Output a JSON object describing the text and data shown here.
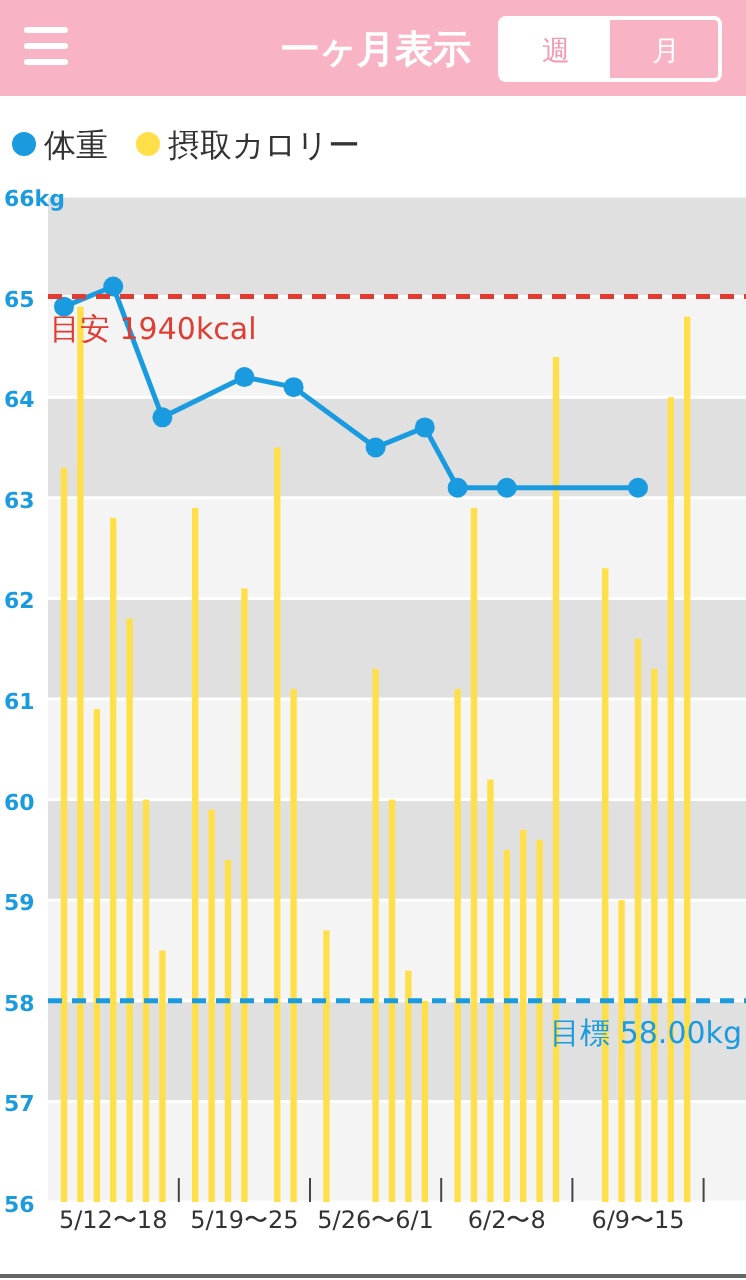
{
  "chart_data": {
    "type": "bar",
    "title": "一ヶ月表示",
    "annotations": [
      "週",
      "月"
    ],
    "categories": [
      null,
      null,
      null,
      "5/12〜18",
      null,
      null,
      null,
      null,
      null,
      null,
      null,
      "5/19〜25",
      null,
      null,
      null,
      null,
      null,
      null,
      null,
      "5/26〜6/1",
      null,
      null,
      null,
      null,
      null,
      null,
      null,
      "6/2〜8",
      null,
      null,
      null,
      null,
      null,
      null,
      null,
      "6/9〜15",
      null,
      null,
      null,
      null
    ],
    "series": [
      {
        "name": "体重",
        "type": "line",
        "color": "#1a9be0",
        "marker": "circle",
        "values": [
          64.9,
          null,
          null,
          65.1,
          null,
          null,
          63.8,
          null,
          null,
          null,
          null,
          64.2,
          null,
          null,
          64.1,
          null,
          null,
          null,
          null,
          63.5,
          null,
          null,
          63.7,
          null,
          63.1,
          null,
          null,
          63.1,
          null,
          null,
          null,
          null,
          null,
          null,
          null,
          63.1,
          null,
          null,
          null,
          null
        ]
      },
      {
        "name": "摂取カロリー",
        "color": "#ffe04a",
        "values": [
          63.3,
          64.9,
          60.9,
          62.8,
          61.8,
          60.0,
          58.5,
          null,
          62.9,
          59.9,
          59.4,
          62.1,
          null,
          63.5,
          61.1,
          null,
          58.7,
          null,
          null,
          61.3,
          60.0,
          58.3,
          58.0,
          null,
          61.1,
          62.9,
          60.2,
          59.5,
          59.7,
          59.6,
          64.4,
          null,
          null,
          62.3,
          59.0,
          61.6,
          61.3,
          64.0,
          64.8,
          null
        ]
      }
    ],
    "ylim": [
      56,
      66
    ],
    "yticks": [
      56,
      57,
      58,
      59,
      60,
      61,
      62,
      63,
      64,
      65,
      {
        "value": 66,
        "label": "66kg"
      }
    ],
    "ref_lines": [
      {
        "axis": "y",
        "value": 65,
        "label": "目安 1940kcal",
        "color": "#e03c31",
        "line_style": "dashed"
      },
      {
        "axis": "y",
        "value": 58,
        "label": "目標 58.00kg",
        "color": "#1a9be0",
        "line_style": "dashed"
      }
    ],
    "grid": "y",
    "legend": "top left"
  }
}
